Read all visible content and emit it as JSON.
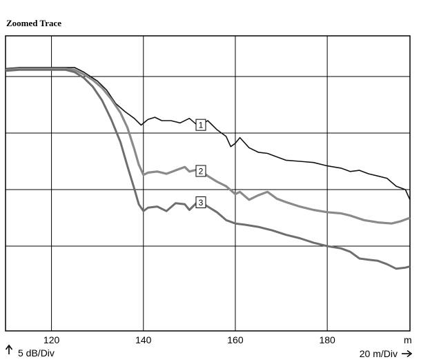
{
  "chart_data": {
    "type": "line",
    "title": "Zoomed Trace",
    "x_unit": "m",
    "x_scale_label": "20 m/Div",
    "y_scale_label": "5 dB/Div",
    "xlim": [
      110,
      198
    ],
    "ylim": [
      -22.5,
      3.6
    ],
    "x_ticks": [
      120,
      140,
      160,
      180
    ],
    "y_gridlines": [
      0,
      -5,
      -10,
      -15
    ],
    "grid": true,
    "colors": {
      "series_1": "#111111",
      "series_2": "#8a8a8a",
      "series_3": "#6e6e6e",
      "grid": "#000000"
    },
    "series": [
      {
        "name": "1",
        "marker_at": 152.5,
        "points": [
          [
            110,
            0.7
          ],
          [
            113,
            0.8
          ],
          [
            118,
            0.8
          ],
          [
            123,
            0.8
          ],
          [
            125,
            0.8
          ],
          [
            127,
            0.4
          ],
          [
            130,
            -0.4
          ],
          [
            132,
            -1.2
          ],
          [
            134,
            -2.4
          ],
          [
            136,
            -3.1
          ],
          [
            138,
            -3.7
          ],
          [
            139.5,
            -4.3
          ],
          [
            141,
            -3.8
          ],
          [
            142.5,
            -3.6
          ],
          [
            144,
            -3.9
          ],
          [
            146,
            -3.9
          ],
          [
            148,
            -4.1
          ],
          [
            150,
            -3.7
          ],
          [
            152,
            -4.4
          ],
          [
            154,
            -3.9
          ],
          [
            156,
            -4.7
          ],
          [
            158,
            -5.3
          ],
          [
            159,
            -6.2
          ],
          [
            160,
            -5.9
          ],
          [
            161,
            -5.4
          ],
          [
            163,
            -6.3
          ],
          [
            165,
            -6.7
          ],
          [
            167,
            -6.8
          ],
          [
            169,
            -7.1
          ],
          [
            171,
            -7.4
          ],
          [
            174,
            -7.5
          ],
          [
            177,
            -7.6
          ],
          [
            180,
            -7.9
          ],
          [
            183,
            -8.1
          ],
          [
            185,
            -8.4
          ],
          [
            187,
            -8.3
          ],
          [
            189,
            -8.6
          ],
          [
            191,
            -8.8
          ],
          [
            193,
            -9.0
          ],
          [
            195,
            -9.7
          ],
          [
            197,
            -10.0
          ],
          [
            198,
            -10.9
          ]
        ]
      },
      {
        "name": "2",
        "marker_at": 152.5,
        "points": [
          [
            110,
            0.6
          ],
          [
            113,
            0.7
          ],
          [
            118,
            0.7
          ],
          [
            123,
            0.7
          ],
          [
            125,
            0.6
          ],
          [
            127,
            0.2
          ],
          [
            129,
            -0.3
          ],
          [
            131,
            -1.0
          ],
          [
            133,
            -2.0
          ],
          [
            135,
            -3.2
          ],
          [
            136.5,
            -4.5
          ],
          [
            138,
            -6.4
          ],
          [
            139,
            -7.8
          ],
          [
            140,
            -8.7
          ],
          [
            141,
            -8.5
          ],
          [
            143,
            -8.4
          ],
          [
            145,
            -8.6
          ],
          [
            147,
            -8.3
          ],
          [
            149,
            -8.0
          ],
          [
            150,
            -8.4
          ],
          [
            152,
            -8.2
          ],
          [
            154,
            -8.8
          ],
          [
            156,
            -9.3
          ],
          [
            158,
            -9.7
          ],
          [
            160,
            -10.4
          ],
          [
            161,
            -10.2
          ],
          [
            163,
            -10.9
          ],
          [
            165,
            -10.5
          ],
          [
            167,
            -10.2
          ],
          [
            169,
            -10.8
          ],
          [
            171,
            -11.1
          ],
          [
            174,
            -11.5
          ],
          [
            177,
            -11.8
          ],
          [
            180,
            -12.0
          ],
          [
            183,
            -12.1
          ],
          [
            185,
            -12.3
          ],
          [
            188,
            -12.7
          ],
          [
            191,
            -12.9
          ],
          [
            194,
            -13.0
          ],
          [
            196,
            -12.8
          ],
          [
            198,
            -12.5
          ]
        ]
      },
      {
        "name": "3",
        "marker_at": 152.5,
        "points": [
          [
            110,
            0.5
          ],
          [
            113,
            0.6
          ],
          [
            118,
            0.6
          ],
          [
            123,
            0.6
          ],
          [
            125,
            0.4
          ],
          [
            127,
            -0.1
          ],
          [
            129,
            -0.9
          ],
          [
            131,
            -2.1
          ],
          [
            133,
            -3.8
          ],
          [
            135,
            -5.8
          ],
          [
            136.5,
            -7.9
          ],
          [
            138,
            -9.9
          ],
          [
            139,
            -11.3
          ],
          [
            140,
            -11.9
          ],
          [
            141,
            -11.6
          ],
          [
            143,
            -11.5
          ],
          [
            145,
            -11.9
          ],
          [
            147,
            -11.2
          ],
          [
            149,
            -11.3
          ],
          [
            150,
            -11.8
          ],
          [
            152,
            -11.0
          ],
          [
            154,
            -11.5
          ],
          [
            156,
            -12.0
          ],
          [
            158,
            -12.7
          ],
          [
            160,
            -13.0
          ],
          [
            162,
            -13.1
          ],
          [
            165,
            -13.3
          ],
          [
            168,
            -13.6
          ],
          [
            171,
            -14.0
          ],
          [
            174,
            -14.3
          ],
          [
            177,
            -14.7
          ],
          [
            180,
            -15.0
          ],
          [
            183,
            -15.2
          ],
          [
            185,
            -15.5
          ],
          [
            187,
            -16.1
          ],
          [
            189,
            -16.2
          ],
          [
            191,
            -16.3
          ],
          [
            193,
            -16.6
          ],
          [
            195,
            -17.0
          ],
          [
            197,
            -16.9
          ],
          [
            198,
            -16.8
          ]
        ]
      }
    ]
  }
}
